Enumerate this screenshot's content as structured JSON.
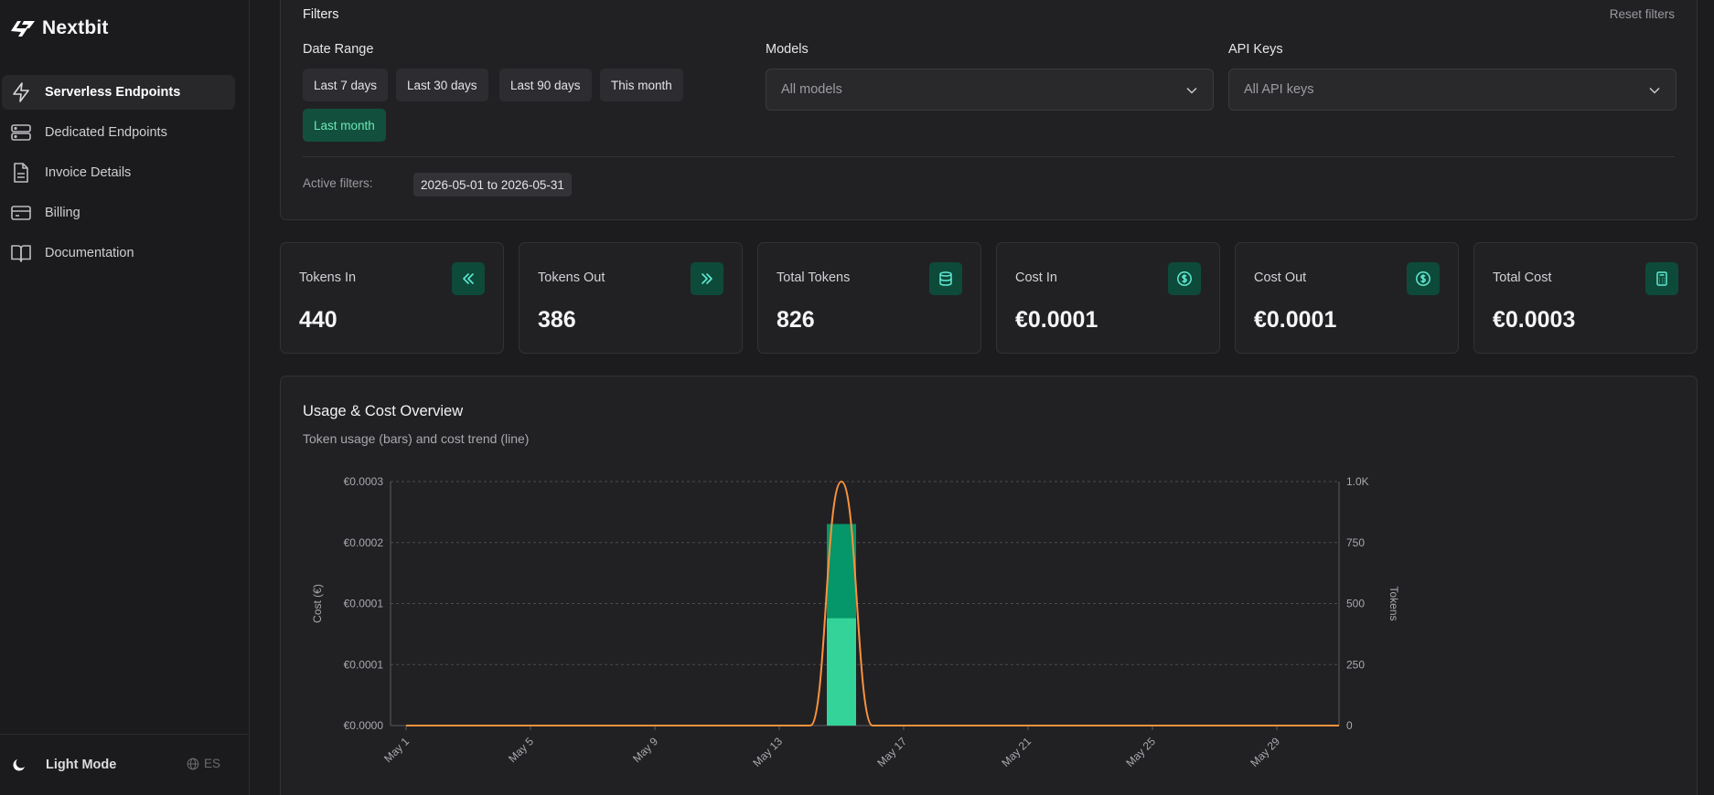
{
  "app": {
    "name": "Nextbit"
  },
  "sidebar": {
    "items": [
      {
        "label": "Serverless Endpoints",
        "icon": "lightning-icon",
        "active": true
      },
      {
        "label": "Dedicated Endpoints",
        "icon": "server-icon",
        "active": false
      },
      {
        "label": "Invoice Details",
        "icon": "document-icon",
        "active": false
      },
      {
        "label": "Billing",
        "icon": "credit-card-icon",
        "active": false
      },
      {
        "label": "Documentation",
        "icon": "book-icon",
        "active": false
      }
    ],
    "mode_label": "Light Mode",
    "language": "ES"
  },
  "filters": {
    "title": "Filters",
    "reset_label": "Reset filters",
    "date_range": {
      "label": "Date Range",
      "options": [
        "Last 7 days",
        "Last 30 days",
        "Last 90 days",
        "This month",
        "Last month"
      ],
      "selected": "Last month"
    },
    "models": {
      "label": "Models",
      "value": "All models"
    },
    "api_keys": {
      "label": "API Keys",
      "value": "All API keys"
    },
    "active_label": "Active filters:",
    "active_value": "2026-05-01 to 2026-05-31"
  },
  "stats": [
    {
      "label": "Tokens In",
      "value": "440",
      "icon": "double-chevron-left-icon"
    },
    {
      "label": "Tokens Out",
      "value": "386",
      "icon": "double-chevron-right-icon"
    },
    {
      "label": "Total Tokens",
      "value": "826",
      "icon": "database-icon"
    },
    {
      "label": "Cost In",
      "value": "€0.0001",
      "icon": "dollar-circle-icon"
    },
    {
      "label": "Cost Out",
      "value": "€0.0001",
      "icon": "dollar-circle-icon"
    },
    {
      "label": "Total Cost",
      "value": "€0.0003",
      "icon": "calculator-icon"
    }
  ],
  "chart": {
    "title": "Usage & Cost Overview",
    "subtitle": "Token usage (bars) and cost trend (line)"
  },
  "colors": {
    "accent": "#34d399",
    "accent_dark": "#059669",
    "line": "#fb923c",
    "icon_bg": "#0e4a39"
  },
  "chart_data": {
    "type": "bar",
    "title": "Usage & Cost Overview",
    "subtitle": "Token usage (bars) and cost trend (line)",
    "x_tick_labels": [
      "May 1",
      "May 5",
      "May 9",
      "May 13",
      "May 17",
      "May 21",
      "May 25",
      "May 29"
    ],
    "y_left": {
      "label": "Cost (€)",
      "tick_labels": [
        "€0.0000",
        "€0.0001",
        "€0.0001",
        "€0.0002",
        "€0.0003"
      ],
      "range": [
        0,
        0.0003
      ]
    },
    "y_right": {
      "label": "Tokens",
      "tick_labels": [
        "0",
        "250",
        "500",
        "750",
        "1.0K"
      ],
      "range": [
        0,
        1000
      ]
    },
    "grid": true,
    "bars": [
      {
        "day": "May 15",
        "series": "Tokens In",
        "value": 440
      },
      {
        "day": "May 15",
        "series": "Tokens Out",
        "value": 386
      }
    ],
    "line": {
      "series": "Cost",
      "points": [
        {
          "day": "May 1",
          "value": 0
        },
        {
          "day": "May 14",
          "value": 0
        },
        {
          "day": "May 15",
          "value": 0.0003
        },
        {
          "day": "May 16",
          "value": 0
        },
        {
          "day": "May 31",
          "value": 0
        }
      ]
    }
  }
}
